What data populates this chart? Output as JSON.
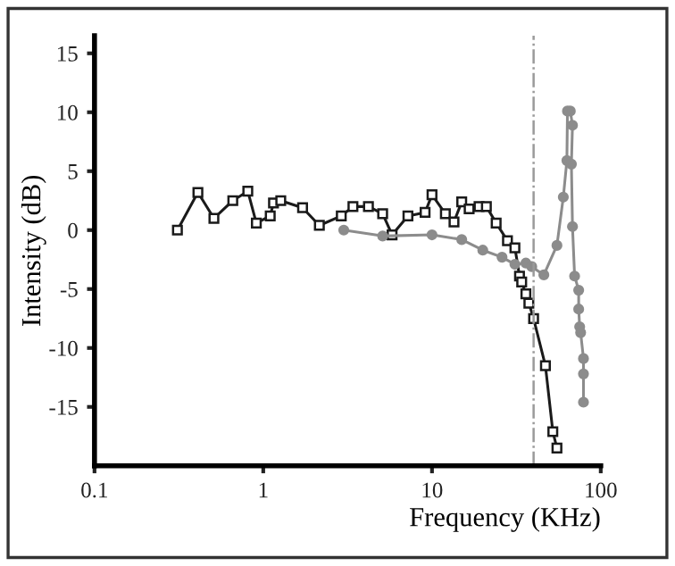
{
  "chart_data": {
    "type": "line",
    "xlabel": "Frequency (KHz)",
    "ylabel": "Intensity (dB)",
    "log": "x",
    "xlim": [
      0.1,
      100
    ],
    "xticks": [
      {
        "value": 0.1,
        "label": "0.1"
      },
      1,
      10,
      100
    ],
    "ylim": [
      -20,
      16.5
    ],
    "yticks": [
      {
        "value": -15,
        "label": "-15"
      },
      {
        "value": -10,
        "label": "-10"
      },
      {
        "value": -5,
        "label": "-5"
      },
      0,
      5,
      10,
      15
    ],
    "grid": false,
    "legend": false,
    "series": [
      {
        "color": "#1a1a1a",
        "marker": "square",
        "x": [
          0.31,
          0.41,
          0.51,
          0.66,
          0.81,
          0.91,
          1.1,
          1.15,
          1.27,
          1.71,
          2.15,
          2.9,
          3.4,
          4.2,
          5.1,
          5.8,
          7.2,
          9.1,
          10,
          12,
          13.5,
          15,
          16.6,
          19,
          21,
          24,
          28,
          31,
          33,
          34,
          36,
          37.5,
          40,
          47,
          52,
          55
        ],
        "values": [
          0,
          3.2,
          1.0,
          2.5,
          3.3,
          0.6,
          1.2,
          2.3,
          2.5,
          1.9,
          0.4,
          1.2,
          2.0,
          2.0,
          1.4,
          -0.4,
          1.2,
          1.5,
          3.0,
          1.4,
          0.7,
          2.4,
          1.8,
          2.0,
          2.0,
          0.6,
          -0.9,
          -1.5,
          -3.9,
          -4.4,
          -5.4,
          -6.2,
          -7.5,
          -11.5,
          -17.1,
          -18.5
        ]
      },
      {
        "color": "#8c8c8c",
        "marker": "circle",
        "x": [
          3.0,
          5.1,
          10,
          15,
          20,
          26,
          31,
          36,
          39,
          46,
          55,
          60,
          63,
          63.5,
          66,
          68,
          67,
          68,
          70,
          74,
          74,
          75,
          76,
          79,
          79,
          79
        ],
        "values": [
          0,
          -0.5,
          -0.4,
          -0.8,
          -1.7,
          -2.3,
          -2.9,
          -2.8,
          -3.1,
          -3.8,
          -1.3,
          2.8,
          5.9,
          10.1,
          10.1,
          8.9,
          5.6,
          0.3,
          -3.9,
          -5.1,
          -6.7,
          -8.2,
          -8.7,
          -10.9,
          -12.2,
          -14.6
        ]
      }
    ],
    "ref_lines": [
      {
        "axis": "x",
        "value": 40,
        "color": "#9a9a9a",
        "line_style": "dashdot"
      }
    ]
  }
}
